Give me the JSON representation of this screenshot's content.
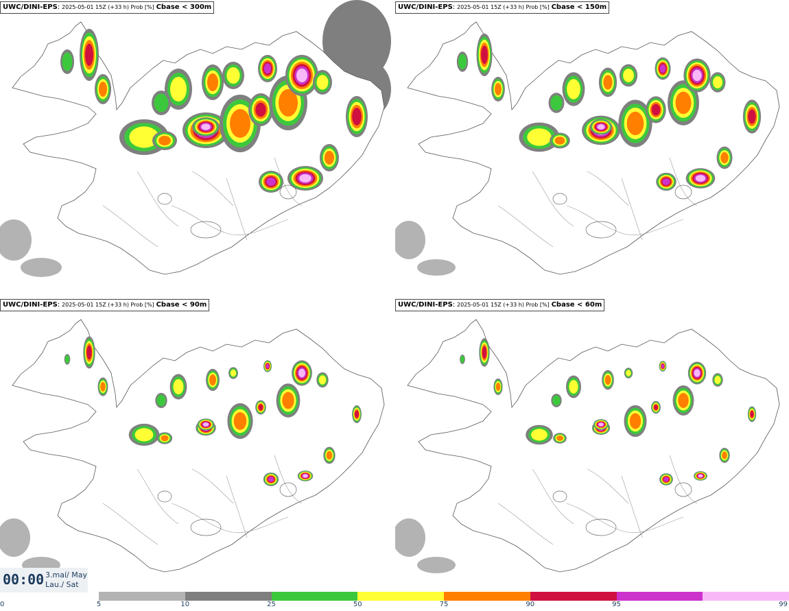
{
  "title_parts": {
    "model": "UWC/DINI-EPS",
    "separator": ":",
    "meta": "2025-05-01 15Z (+33 h) Prob [%]"
  },
  "panels": [
    {
      "condition": "Cbase < 300m",
      "coverage": 1.0
    },
    {
      "condition": "Cbase < 150m",
      "coverage": 0.82
    },
    {
      "condition": "Cbase < 90m",
      "coverage": 0.62
    },
    {
      "condition": "Cbase < 60m",
      "coverage": 0.55
    }
  ],
  "time_box": {
    "clock": "00:00",
    "date_line1": "3.maí/ May",
    "date_line2": "Lau./ Sat"
  },
  "legend": {
    "ticks": [
      "0",
      "5",
      "10",
      "25",
      "50",
      "75",
      "90",
      "95",
      "99"
    ],
    "colors": [
      "#ffffff",
      "#b3b3b3",
      "#7f7f7f",
      "#3cc83c",
      "#ffff33",
      "#ff7f00",
      "#d01040",
      "#cc33cc",
      "#f8b8f8"
    ]
  }
}
